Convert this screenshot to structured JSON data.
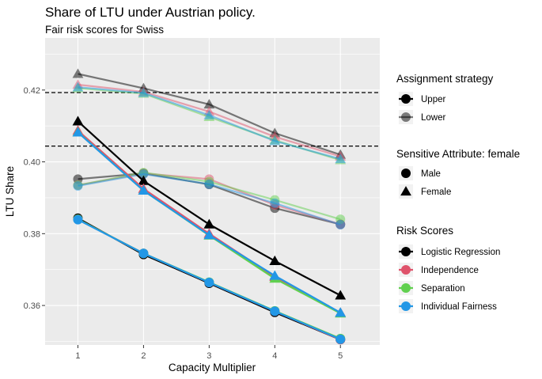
{
  "chart_data": {
    "type": "line",
    "title": "Share of LTU under Austrian policy.",
    "subtitle": "Fair risk scores for Swiss",
    "xlabel": "Capacity Multiplier",
    "ylabel": "LTU Share",
    "x": [
      1,
      2,
      3,
      4,
      5
    ],
    "xlim": [
      0.5,
      5.6
    ],
    "ylim": [
      0.349,
      0.4345
    ],
    "x_ticks": [
      "1",
      "2",
      "3",
      "4",
      "5"
    ],
    "y_ticks": [
      0.36,
      0.38,
      0.4,
      0.42
    ],
    "y_tick_labels": [
      "0.36",
      "0.38",
      "0.40",
      "0.42"
    ],
    "reference_lines": [
      0.4193,
      0.4044
    ],
    "grid": true,
    "legend_position": "right",
    "legends": {
      "assignment": {
        "title": "Assignment strategy",
        "items": [
          {
            "label": "Upper",
            "opacity": 1.0
          },
          {
            "label": "Lower",
            "opacity": 0.5
          }
        ]
      },
      "sensitive": {
        "title": "Sensitive Attribute: female",
        "items": [
          {
            "label": "Male",
            "shape": "circle"
          },
          {
            "label": "Female",
            "shape": "triangle"
          }
        ]
      },
      "scores": {
        "title": "Risk Scores",
        "items": [
          {
            "label": "Logistic Regression",
            "color": "#000000"
          },
          {
            "label": "Independence",
            "color": "#DF536B"
          },
          {
            "label": "Separation",
            "color": "#61D04F"
          },
          {
            "label": "Individual Fairness",
            "color": "#2297E6"
          }
        ]
      }
    },
    "series": [
      {
        "score": "Logistic Regression",
        "strategy": "Lower",
        "attribute": "Female",
        "values": [
          0.4245,
          0.4205,
          0.416,
          0.408,
          0.402
        ]
      },
      {
        "score": "Independence",
        "strategy": "Lower",
        "attribute": "Female",
        "values": [
          0.4215,
          0.4195,
          0.414,
          0.407,
          0.4015
        ]
      },
      {
        "score": "Separation",
        "strategy": "Lower",
        "attribute": "Female",
        "values": [
          0.4205,
          0.419,
          0.4125,
          0.406,
          0.4005
        ]
      },
      {
        "score": "Individual Fairness",
        "strategy": "Lower",
        "attribute": "Female",
        "values": [
          0.4208,
          0.4192,
          0.413,
          0.4058,
          0.4008
        ]
      },
      {
        "score": "Logistic Regression",
        "strategy": "Lower",
        "attribute": "Male",
        "values": [
          0.3952,
          0.3968,
          0.3937,
          0.3871,
          0.3826
        ]
      },
      {
        "score": "Independence",
        "strategy": "Lower",
        "attribute": "Male",
        "values": [
          0.3935,
          0.3968,
          0.3952,
          0.388,
          0.3826
        ]
      },
      {
        "score": "Separation",
        "strategy": "Lower",
        "attribute": "Male",
        "values": [
          0.3935,
          0.397,
          0.3945,
          0.3894,
          0.384
        ]
      },
      {
        "score": "Individual Fairness",
        "strategy": "Lower",
        "attribute": "Male",
        "values": [
          0.3933,
          0.3966,
          0.3938,
          0.3885,
          0.3825
        ]
      },
      {
        "score": "Logistic Regression",
        "strategy": "Upper",
        "attribute": "Female",
        "values": [
          0.4113,
          0.3947,
          0.3826,
          0.3724,
          0.3628
        ]
      },
      {
        "score": "Independence",
        "strategy": "Upper",
        "attribute": "Female",
        "values": [
          0.4087,
          0.3925,
          0.38,
          0.368,
          0.358
        ]
      },
      {
        "score": "Separation",
        "strategy": "Upper",
        "attribute": "Female",
        "values": [
          0.4083,
          0.392,
          0.3795,
          0.3675,
          0.3578
        ]
      },
      {
        "score": "Individual Fairness",
        "strategy": "Upper",
        "attribute": "Female",
        "values": [
          0.4082,
          0.392,
          0.3796,
          0.3683,
          0.358
        ]
      },
      {
        "score": "Logistic Regression",
        "strategy": "Upper",
        "attribute": "Male",
        "values": [
          0.3843,
          0.3742,
          0.3662,
          0.3581,
          0.3505
        ]
      },
      {
        "score": "Independence",
        "strategy": "Upper",
        "attribute": "Male",
        "values": [
          0.384,
          0.3745,
          0.3664,
          0.3584,
          0.3505
        ]
      },
      {
        "score": "Separation",
        "strategy": "Upper",
        "attribute": "Male",
        "values": [
          0.384,
          0.3745,
          0.3665,
          0.3585,
          0.3508
        ]
      },
      {
        "score": "Individual Fairness",
        "strategy": "Upper",
        "attribute": "Male",
        "values": [
          0.3839,
          0.3745,
          0.3664,
          0.3584,
          0.3506
        ]
      }
    ]
  }
}
